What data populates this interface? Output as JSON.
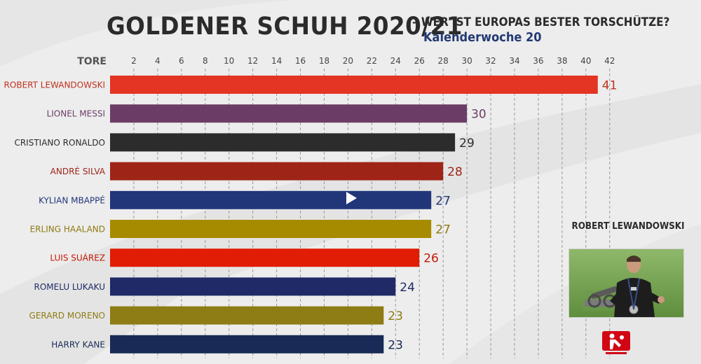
{
  "header": {
    "title": "GOLDENER SCHUH 2020/21",
    "subtitle": "– WER IST EUROPAS BESTER TORSCHÜTZE?",
    "week": "Kalenderwoche 20"
  },
  "spotlight": {
    "name": "ROBERT LEWANDOWSKI",
    "photo_icon": "player-photo",
    "logo_icon": "bundesliga-logo"
  },
  "controls": {
    "play_icon": "play-icon"
  },
  "colors": {
    "background": "#ededed",
    "gridline": "#9a9a9a"
  },
  "chart_data": {
    "type": "bar",
    "orientation": "horizontal",
    "xlabel": "TORE",
    "xticks": [
      2,
      4,
      6,
      8,
      10,
      12,
      14,
      16,
      18,
      20,
      22,
      24,
      26,
      28,
      30,
      32,
      34,
      36,
      38,
      40,
      42
    ],
    "xlim": [
      0,
      43
    ],
    "grid": true,
    "categories": [
      "ROBERT LEWANDOWSKI",
      "LIONEL MESSI",
      "CRISTIANO RONALDO",
      "ANDRÉ SILVA",
      "KYLIAN MBAPPÉ",
      "ERLING HAALAND",
      "LUIS SUÁREZ",
      "ROMELU LUKAKU",
      "GERARD MORENO",
      "HARRY KANE"
    ],
    "values": [
      41,
      30,
      29,
      28,
      27,
      27,
      26,
      24,
      23,
      23
    ],
    "colors": [
      "#e43423",
      "#6b3d66",
      "#2c2c2c",
      "#9f2418",
      "#213579",
      "#a68b00",
      "#e11d06",
      "#1f2a66",
      "#8e7c14",
      "#182a55"
    ],
    "label_colors": [
      "#c0311e",
      "#6b3d66",
      "#2c2c2c",
      "#9f2418",
      "#213579",
      "#8e7a10",
      "#c01a08",
      "#1f2a66",
      "#8e7c14",
      "#182a55"
    ]
  }
}
